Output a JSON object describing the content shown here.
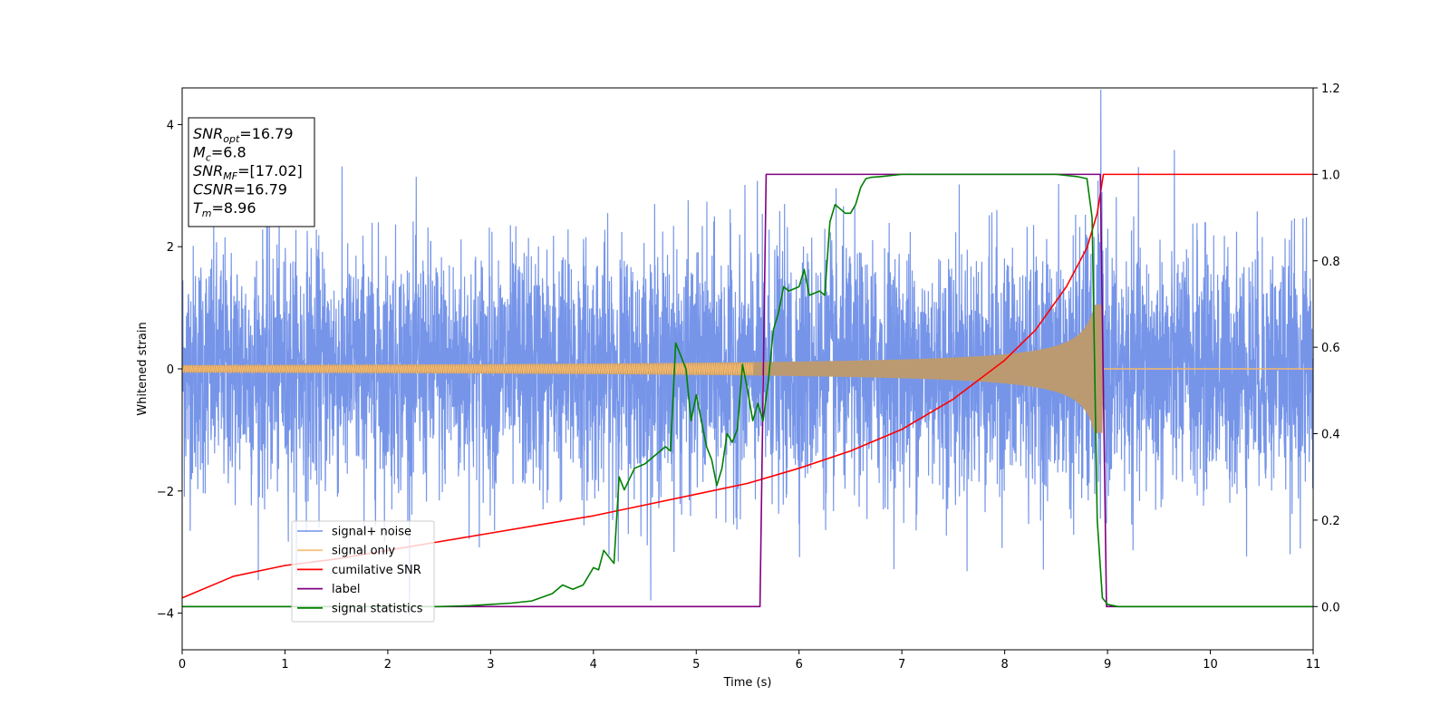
{
  "chart_data": {
    "type": "line",
    "title": "",
    "xlabel": "Time (s)",
    "ylabel": "Whitened strain",
    "y2label": "",
    "xlim": [
      0,
      11
    ],
    "ylim": [
      -4.6,
      4.6
    ],
    "y2lim": [
      -0.1,
      1.2
    ],
    "x_ticks": [
      0,
      1,
      2,
      3,
      4,
      5,
      6,
      7,
      8,
      9,
      10,
      11
    ],
    "y_ticks": [
      -4,
      -2,
      0,
      2,
      4
    ],
    "y2_ticks": [
      "0.0",
      "0.2",
      "0.4",
      "0.6",
      "0.8",
      "1.0",
      "1.2"
    ],
    "grid": false,
    "legend_placement": "lower-left",
    "series": [
      {
        "name": "signal+ noise",
        "axis": "left",
        "color": "#6f8fe8",
        "description_shape": "dense noise, std ~1, range approx -4.2 to 4.2",
        "noise_std": 1.0,
        "x_range": [
          0,
          11
        ]
      },
      {
        "name": "signal only",
        "axis": "left",
        "color": "#f5b86b",
        "chirp_end_time": 8.96,
        "amplitude_start": 0.06,
        "amplitude_end": 1.05
      },
      {
        "name": "cumilative SNR",
        "axis": "right",
        "color": "#ff0000",
        "x": [
          0,
          0.5,
          1,
          1.5,
          2,
          2.5,
          3,
          3.5,
          4,
          4.5,
          5,
          5.5,
          6,
          6.5,
          7,
          7.5,
          8,
          8.3,
          8.6,
          8.8,
          8.9,
          8.96,
          9,
          11
        ],
        "values": [
          0.02,
          0.07,
          0.095,
          0.11,
          0.13,
          0.15,
          0.17,
          0.19,
          0.21,
          0.235,
          0.26,
          0.285,
          0.32,
          0.36,
          0.41,
          0.48,
          0.57,
          0.64,
          0.74,
          0.83,
          0.91,
          1.0,
          1.0,
          1.0
        ]
      },
      {
        "name": "label",
        "axis": "right",
        "color": "#800080",
        "x": [
          0,
          5.62,
          5.68,
          8.93,
          8.99,
          11
        ],
        "values": [
          0,
          0,
          1,
          1,
          0,
          0
        ]
      },
      {
        "name": "signal statistics",
        "axis": "right",
        "color": "#008000",
        "x": [
          0,
          0.5,
          1,
          1.5,
          2,
          2.5,
          2.8,
          3.0,
          3.2,
          3.4,
          3.6,
          3.7,
          3.8,
          3.9,
          4.0,
          4.05,
          4.1,
          4.2,
          4.25,
          4.3,
          4.4,
          4.5,
          4.6,
          4.7,
          4.75,
          4.8,
          4.9,
          4.95,
          5.0,
          5.1,
          5.15,
          5.2,
          5.25,
          5.3,
          5.35,
          5.4,
          5.45,
          5.5,
          5.55,
          5.6,
          5.65,
          5.7,
          5.75,
          5.8,
          5.85,
          5.9,
          6.0,
          6.05,
          6.1,
          6.2,
          6.25,
          6.3,
          6.35,
          6.45,
          6.5,
          6.55,
          6.6,
          6.65,
          6.7,
          6.8,
          7.0,
          7.5,
          8.0,
          8.5,
          8.7,
          8.8,
          8.85,
          8.9,
          8.95,
          9.0,
          9.1,
          11
        ],
        "values": [
          0,
          0,
          0,
          0,
          0,
          0,
          0.002,
          0.005,
          0.008,
          0.013,
          0.03,
          0.05,
          0.04,
          0.05,
          0.09,
          0.085,
          0.13,
          0.1,
          0.3,
          0.27,
          0.32,
          0.33,
          0.35,
          0.37,
          0.36,
          0.61,
          0.55,
          0.43,
          0.49,
          0.37,
          0.34,
          0.28,
          0.32,
          0.4,
          0.38,
          0.41,
          0.56,
          0.5,
          0.43,
          0.47,
          0.43,
          0.52,
          0.64,
          0.68,
          0.74,
          0.73,
          0.74,
          0.78,
          0.72,
          0.73,
          0.72,
          0.89,
          0.93,
          0.91,
          0.91,
          0.93,
          0.97,
          0.99,
          0.993,
          0.995,
          1.0,
          1.0,
          1.0,
          1.0,
          0.995,
          0.99,
          0.9,
          0.2,
          0.02,
          0.005,
          0.0,
          0.0
        ]
      }
    ],
    "annotation": {
      "lines": [
        {
          "main": "SNR",
          "sub": "opt",
          "rest": "=16.79"
        },
        {
          "main": "M",
          "sub": "c",
          "rest": "=6.8"
        },
        {
          "main": "SNR",
          "sub": "MF",
          "rest": "=[17.02]"
        },
        {
          "main": "CSNR",
          "sub": "",
          "rest": "=16.79"
        },
        {
          "main": "T",
          "sub": "m",
          "rest": "=8.96"
        }
      ]
    }
  }
}
